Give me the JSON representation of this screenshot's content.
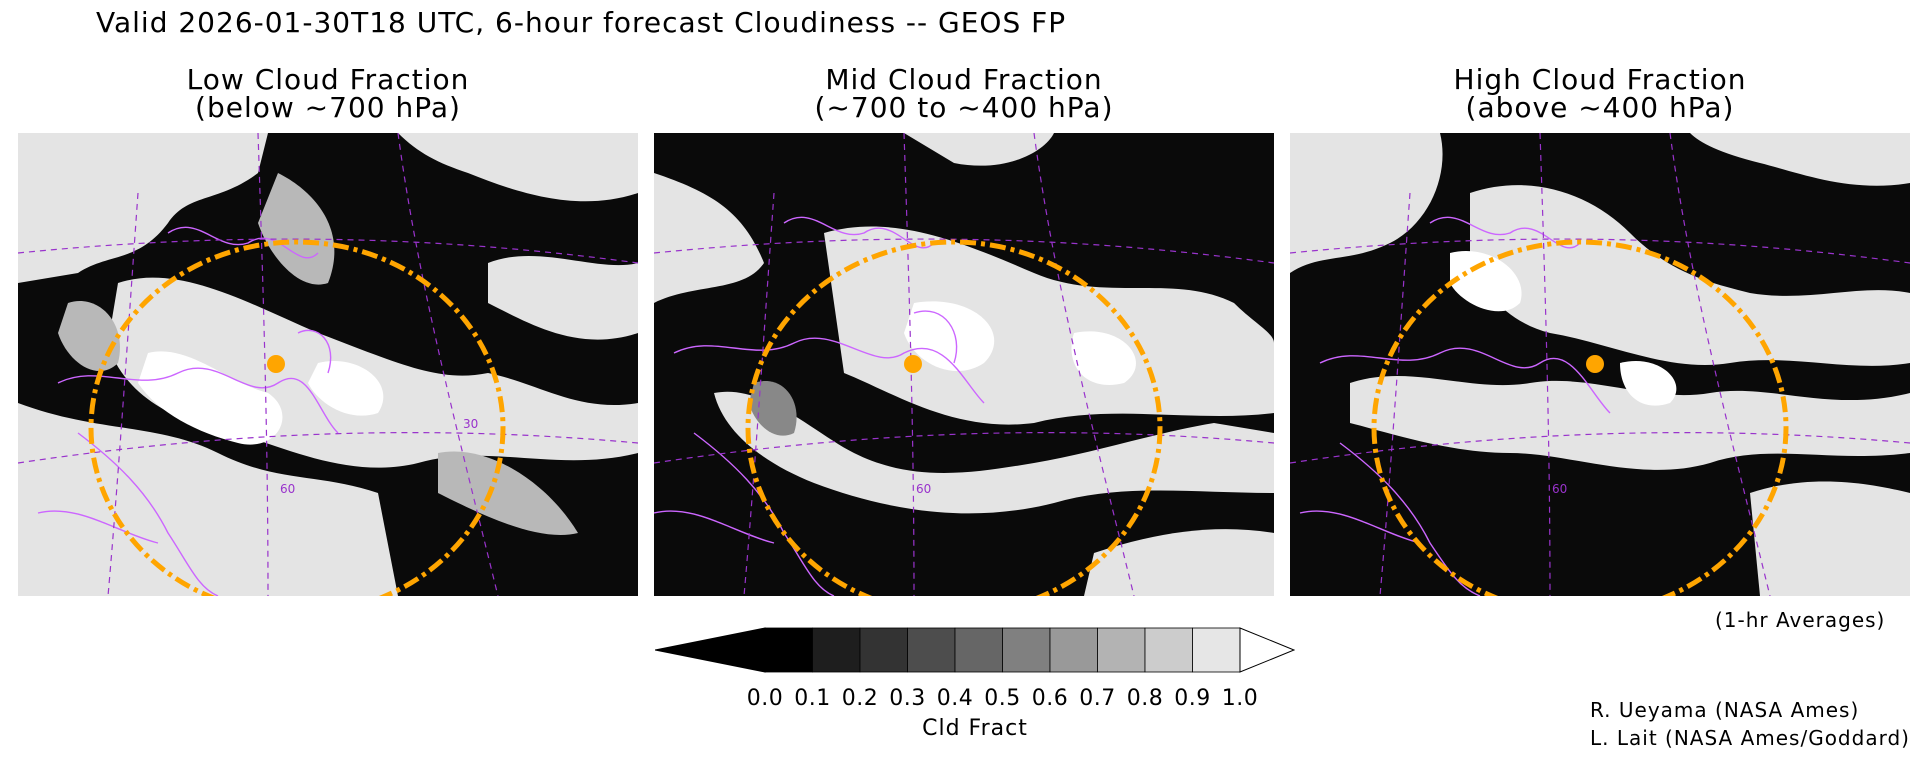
{
  "header": {
    "title": "Valid 2026-01-30T18 UTC, 6-hour forecast Cloudiness -- GEOS FP"
  },
  "panels": [
    {
      "line1": "Low Cloud Fraction",
      "line2": "(below ~700 hPa)"
    },
    {
      "line1": "Mid Cloud Fraction",
      "line2": "(~700 to ~400 hPa)"
    },
    {
      "line1": "High Cloud Fraction",
      "line2": "(above ~400 hPa)"
    }
  ],
  "map_labels": {
    "lat_60": "60",
    "lat_30": "30"
  },
  "colorbar": {
    "label": "Cld Fract",
    "ticks": [
      "0.0",
      "0.1",
      "0.2",
      "0.3",
      "0.4",
      "0.5",
      "0.6",
      "0.7",
      "0.8",
      "0.9",
      "1.0"
    ],
    "colors": [
      "#000000",
      "#1e1e1e",
      "#333333",
      "#4d4d4d",
      "#666666",
      "#808080",
      "#999999",
      "#b3b3b3",
      "#cccccc",
      "#e6e6e6"
    ]
  },
  "notes": {
    "averages": "(1-hr Averages)",
    "credit1": "R. Ueyama (NASA Ames)",
    "credit2": "L. Lait (NASA Ames/Goddard)"
  },
  "colors": {
    "range_ring": "#ffa500",
    "coastline": "#cc66ff",
    "marker": "#ffa500"
  }
}
